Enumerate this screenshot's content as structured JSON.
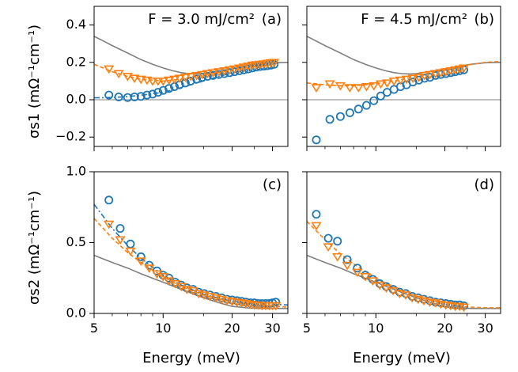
{
  "chart_data": {
    "type": "scatter",
    "x_label": "Energy (meV)",
    "x_scale": "log",
    "x_range": [
      5,
      35
    ],
    "x_ticks": [
      5,
      10,
      20,
      30
    ],
    "x_tick_labels": [
      "5",
      "10",
      "20",
      "30"
    ],
    "y_labels": {
      "top": "σs1 (mΩ⁻¹cm⁻¹)",
      "bottom": "σs2 (mΩ⁻¹cm⁻¹)"
    },
    "rows": [
      {
        "key": "top",
        "y_range": [
          -0.25,
          0.5
        ],
        "y_ticks": [
          -0.2,
          0.0,
          0.2,
          0.4
        ],
        "y_tick_labels": [
          "−0.2",
          "0.0",
          "0.2",
          "0.4"
        ]
      },
      {
        "key": "bottom",
        "y_range": [
          0.0,
          1.0
        ],
        "y_ticks": [
          0.0,
          0.5,
          1.0
        ],
        "y_tick_labels": [
          "0.0",
          "0.5",
          "1.0"
        ]
      }
    ],
    "colors": {
      "circle": "#1f77b4",
      "triangle": "#ff7f0e",
      "theory": "#808080",
      "zero_line": "#808080"
    },
    "panels": [
      {
        "id": "a",
        "tag": "(a)",
        "title": "F = 3.0 mJ/cm²",
        "row": "top",
        "col": 0,
        "zero_line": true,
        "circles": {
          "x": [
            5.8,
            6.4,
            7.0,
            7.5,
            8.0,
            8.5,
            9.0,
            9.5,
            10.0,
            10.6,
            11.2,
            11.8,
            12.5,
            13.2,
            14.0,
            14.8,
            15.6,
            16.5,
            17.5,
            18.5,
            19.5,
            20.5,
            21.5,
            22.5,
            23.5,
            24.5,
            25.5,
            26.5,
            27.5,
            28.5,
            29.5,
            30.5
          ],
          "y": [
            0.025,
            0.015,
            0.012,
            0.015,
            0.018,
            0.025,
            0.03,
            0.04,
            0.05,
            0.06,
            0.07,
            0.08,
            0.09,
            0.1,
            0.11,
            0.12,
            0.125,
            0.13,
            0.135,
            0.14,
            0.145,
            0.15,
            0.155,
            0.16,
            0.165,
            0.17,
            0.175,
            0.178,
            0.18,
            0.182,
            0.185,
            0.19
          ]
        },
        "triangles": {
          "x": [
            5.8,
            6.4,
            7.0,
            7.5,
            8.0,
            8.5,
            9.0,
            9.5,
            10.0,
            10.6,
            11.2,
            11.8,
            12.5,
            13.2,
            14.0,
            14.8,
            15.6,
            16.5,
            17.5,
            18.5,
            19.5,
            20.5,
            21.5,
            22.5,
            23.5,
            24.5,
            25.5,
            26.5,
            27.5,
            28.5,
            29.5,
            30.5
          ],
          "y": [
            0.165,
            0.14,
            0.125,
            0.115,
            0.11,
            0.105,
            0.1,
            0.1,
            0.1,
            0.105,
            0.11,
            0.115,
            0.12,
            0.125,
            0.13,
            0.135,
            0.14,
            0.145,
            0.15,
            0.155,
            0.16,
            0.165,
            0.17,
            0.175,
            0.18,
            0.185,
            0.188,
            0.19,
            0.192,
            0.195,
            0.198,
            0.2
          ]
        },
        "fit_blue": {
          "x": [
            5.0,
            6.0,
            7.0,
            8.0,
            10.0,
            12.0,
            15.0,
            20.0,
            25.0,
            30.0,
            32.0
          ],
          "y": [
            0.01,
            0.012,
            0.017,
            0.024,
            0.04,
            0.065,
            0.1,
            0.145,
            0.17,
            0.19,
            0.2
          ]
        },
        "fit_orange": {
          "x": [
            5.0,
            6.0,
            7.0,
            8.0,
            10.0,
            12.0,
            15.0,
            20.0,
            25.0,
            30.0,
            32.0
          ],
          "y": [
            0.19,
            0.15,
            0.125,
            0.11,
            0.1,
            0.11,
            0.13,
            0.16,
            0.18,
            0.2,
            0.205
          ]
        },
        "theory": {
          "x": [
            5.0,
            6.0,
            7.0,
            8.0,
            9.0,
            10.0,
            11.0,
            12.0,
            13.0,
            14.0,
            15.0,
            17.0,
            20.0,
            23.0,
            26.0,
            30.0,
            35.0
          ],
          "y": [
            0.34,
            0.29,
            0.25,
            0.215,
            0.19,
            0.17,
            0.155,
            0.145,
            0.14,
            0.138,
            0.14,
            0.15,
            0.165,
            0.18,
            0.19,
            0.198,
            0.2
          ]
        }
      },
      {
        "id": "b",
        "tag": "(b)",
        "title": "F = 4.5 mJ/cm²",
        "row": "top",
        "col": 1,
        "zero_line": true,
        "circles": {
          "x": [
            5.5,
            6.3,
            7.0,
            7.7,
            8.4,
            9.1,
            9.8,
            10.5,
            11.2,
            12.0,
            12.8,
            13.6,
            14.5,
            15.4,
            16.3,
            17.2,
            18.2,
            19.2,
            20.2,
            21.2,
            22.2,
            23.2,
            24.2
          ],
          "y": [
            -0.215,
            -0.105,
            -0.09,
            -0.07,
            -0.05,
            -0.03,
            -0.005,
            0.02,
            0.04,
            0.055,
            0.07,
            0.08,
            0.095,
            0.105,
            0.115,
            0.12,
            0.13,
            0.135,
            0.14,
            0.145,
            0.15,
            0.155,
            0.16
          ]
        },
        "triangles": {
          "x": [
            5.5,
            6.3,
            7.0,
            7.7,
            8.4,
            9.1,
            9.8,
            10.5,
            11.2,
            12.0,
            12.8,
            13.6,
            14.5,
            15.4,
            16.3,
            17.2,
            18.2,
            19.2,
            20.2,
            21.2,
            22.2,
            23.2,
            24.2
          ],
          "y": [
            0.065,
            0.085,
            0.075,
            0.065,
            0.065,
            0.07,
            0.075,
            0.085,
            0.09,
            0.1,
            0.105,
            0.11,
            0.115,
            0.12,
            0.13,
            0.135,
            0.14,
            0.145,
            0.15,
            0.155,
            0.16,
            0.165,
            0.17
          ]
        },
        "fit_orange": {
          "x": [
            5.0,
            6.0,
            7.0,
            8.0,
            10.0,
            12.0,
            15.0,
            20.0,
            25.0,
            30.0,
            35.0
          ],
          "y": [
            0.09,
            0.08,
            0.075,
            0.075,
            0.085,
            0.1,
            0.125,
            0.16,
            0.185,
            0.2,
            0.205
          ]
        },
        "theory": {
          "x": [
            5.0,
            6.0,
            7.0,
            8.0,
            9.0,
            10.0,
            11.0,
            12.0,
            13.0,
            14.0,
            15.0,
            17.0,
            20.0,
            23.0,
            26.0,
            30.0,
            35.0
          ],
          "y": [
            0.34,
            0.29,
            0.25,
            0.215,
            0.19,
            0.17,
            0.155,
            0.145,
            0.14,
            0.138,
            0.14,
            0.15,
            0.165,
            0.18,
            0.19,
            0.198,
            0.2
          ]
        }
      },
      {
        "id": "c",
        "tag": "(c)",
        "title": "",
        "row": "bottom",
        "col": 0,
        "zero_line": false,
        "circles": {
          "x": [
            5.8,
            6.5,
            7.2,
            8.0,
            8.7,
            9.4,
            10.0,
            10.6,
            11.3,
            12.0,
            12.7,
            13.5,
            14.3,
            15.1,
            16.0,
            17.0,
            18.0,
            19.0,
            20.0,
            21.0,
            22.0,
            23.0,
            24.0,
            25.0,
            26.0,
            27.0,
            28.0,
            29.0,
            30.0,
            31.0
          ],
          "y": [
            0.8,
            0.6,
            0.49,
            0.4,
            0.34,
            0.3,
            0.27,
            0.25,
            0.22,
            0.2,
            0.18,
            0.17,
            0.15,
            0.14,
            0.13,
            0.12,
            0.11,
            0.1,
            0.095,
            0.09,
            0.085,
            0.08,
            0.075,
            0.075,
            0.07,
            0.07,
            0.07,
            0.07,
            0.075,
            0.08
          ]
        },
        "triangles": {
          "x": [
            5.8,
            6.5,
            7.2,
            8.0,
            8.7,
            9.4,
            10.0,
            10.6,
            11.3,
            12.0,
            12.7,
            13.5,
            14.3,
            15.1,
            16.0,
            17.0,
            18.0,
            19.0,
            20.0,
            21.0,
            22.0,
            23.0,
            24.0,
            25.0,
            26.0,
            27.0,
            28.0,
            29.0,
            30.0,
            31.0
          ],
          "y": [
            0.63,
            0.52,
            0.44,
            0.37,
            0.32,
            0.28,
            0.26,
            0.23,
            0.21,
            0.19,
            0.17,
            0.16,
            0.14,
            0.13,
            0.12,
            0.11,
            0.1,
            0.09,
            0.085,
            0.08,
            0.075,
            0.07,
            0.065,
            0.06,
            0.06,
            0.055,
            0.055,
            0.055,
            0.055,
            0.055
          ]
        },
        "fit_blue": {
          "x": [
            5.0,
            6.0,
            7.0,
            8.0,
            10.0,
            12.0,
            15.0,
            20.0,
            25.0,
            30.0,
            35.0
          ],
          "y": [
            0.77,
            0.6,
            0.48,
            0.39,
            0.27,
            0.2,
            0.135,
            0.085,
            0.07,
            0.065,
            0.06
          ]
        },
        "fit_orange": {
          "x": [
            5.0,
            6.0,
            7.0,
            8.0,
            10.0,
            12.0,
            15.0,
            20.0,
            25.0,
            30.0,
            35.0
          ],
          "y": [
            0.67,
            0.53,
            0.43,
            0.36,
            0.26,
            0.19,
            0.13,
            0.08,
            0.06,
            0.05,
            0.045
          ]
        },
        "theory": {
          "x": [
            5.0,
            6.0,
            7.0,
            8.0,
            10.0,
            12.0,
            15.0,
            18.0,
            20.0,
            23.0,
            26.0,
            30.0,
            35.0
          ],
          "y": [
            0.41,
            0.36,
            0.32,
            0.28,
            0.22,
            0.17,
            0.11,
            0.07,
            0.05,
            0.04,
            0.035,
            0.035,
            0.035
          ]
        }
      },
      {
        "id": "d",
        "tag": "(d)",
        "title": "",
        "row": "bottom",
        "col": 1,
        "zero_line": false,
        "circles": {
          "x": [
            5.5,
            6.2,
            6.8,
            7.5,
            8.3,
            9.0,
            9.7,
            10.4,
            11.1,
            11.9,
            12.7,
            13.5,
            14.4,
            15.3,
            16.2,
            17.2,
            18.2,
            19.2,
            20.2,
            21.2,
            22.2,
            23.2,
            24.2
          ],
          "y": [
            0.7,
            0.53,
            0.51,
            0.38,
            0.32,
            0.27,
            0.24,
            0.21,
            0.19,
            0.17,
            0.15,
            0.14,
            0.12,
            0.11,
            0.1,
            0.09,
            0.08,
            0.075,
            0.07,
            0.065,
            0.06,
            0.06,
            0.055
          ]
        },
        "triangles": {
          "x": [
            5.5,
            6.2,
            6.8,
            7.5,
            8.3,
            9.0,
            9.7,
            10.4,
            11.1,
            11.9,
            12.7,
            13.5,
            14.4,
            15.3,
            16.2,
            17.2,
            18.2,
            19.2,
            20.2,
            21.2,
            22.2,
            23.2,
            24.2
          ],
          "y": [
            0.62,
            0.47,
            0.4,
            0.34,
            0.29,
            0.26,
            0.23,
            0.2,
            0.18,
            0.16,
            0.14,
            0.13,
            0.11,
            0.1,
            0.09,
            0.08,
            0.075,
            0.065,
            0.06,
            0.055,
            0.05,
            0.05,
            0.045
          ]
        },
        "fit_orange": {
          "x": [
            5.0,
            6.0,
            7.0,
            8.0,
            10.0,
            12.0,
            15.0,
            20.0,
            25.0,
            30.0,
            35.0
          ],
          "y": [
            0.65,
            0.52,
            0.42,
            0.35,
            0.25,
            0.18,
            0.12,
            0.065,
            0.045,
            0.04,
            0.04
          ]
        },
        "theory": {
          "x": [
            5.0,
            6.0,
            7.0,
            8.0,
            10.0,
            12.0,
            15.0,
            18.0,
            20.0,
            23.0,
            26.0,
            30.0,
            35.0
          ],
          "y": [
            0.41,
            0.36,
            0.32,
            0.28,
            0.22,
            0.17,
            0.11,
            0.07,
            0.05,
            0.04,
            0.035,
            0.035,
            0.035
          ]
        }
      }
    ]
  }
}
